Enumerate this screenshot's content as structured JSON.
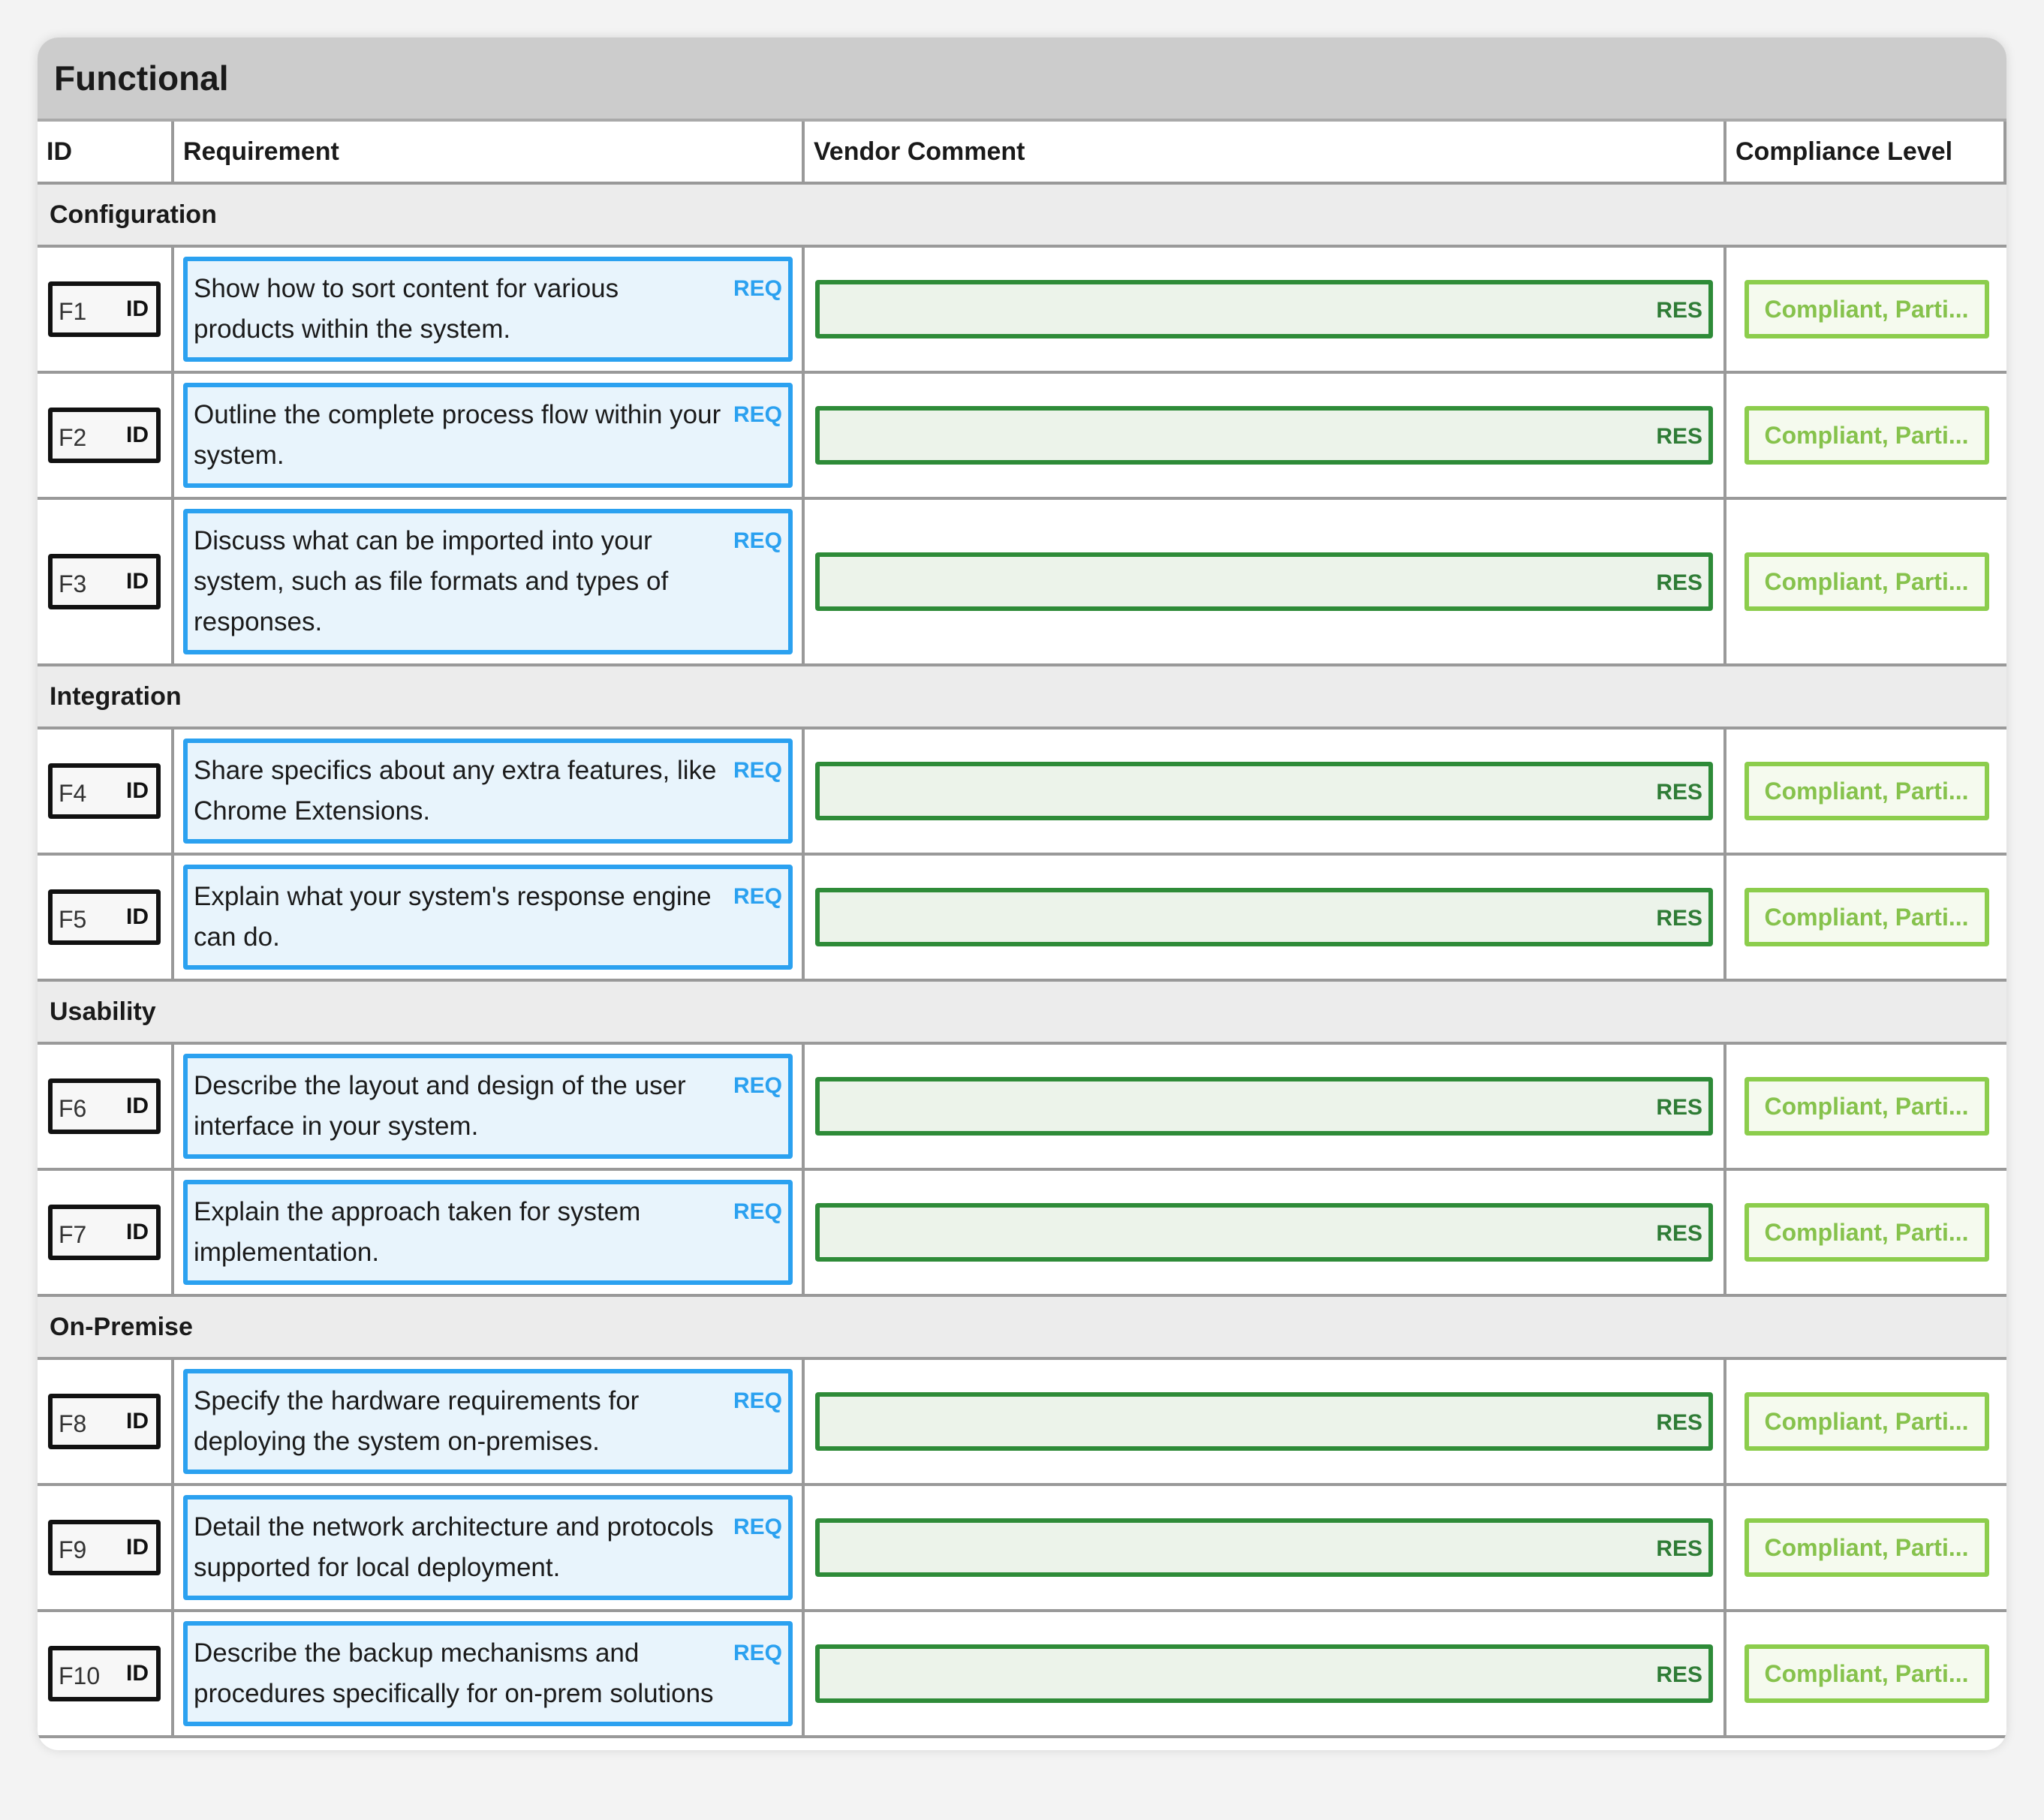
{
  "title": "Functional",
  "headers": {
    "id": "ID",
    "requirement": "Requirement",
    "vendor_comment": "Vendor Comment",
    "compliance_level": "Compliance Level"
  },
  "labels": {
    "id_tag": "ID",
    "req_tag": "REQ",
    "res_tag": "RES",
    "compliance_placeholder": "Compliant, Parti..."
  },
  "sections": [
    {
      "name": "Configuration",
      "rows": [
        {
          "id": "F1",
          "requirement": "Show how to sort content for various products within the system."
        },
        {
          "id": "F2",
          "requirement": "Outline the complete process flow within your system."
        },
        {
          "id": "F3",
          "requirement": "Discuss what can be imported into your system, such as file formats and types of responses."
        }
      ]
    },
    {
      "name": "Integration",
      "rows": [
        {
          "id": "F4",
          "requirement": "Share specifics about any extra features, like Chrome Extensions."
        },
        {
          "id": "F5",
          "requirement": "Explain what your system's response engine can do."
        }
      ]
    },
    {
      "name": "Usability",
      "rows": [
        {
          "id": "F6",
          "requirement": "Describe the layout and design of the user interface in your system."
        },
        {
          "id": "F7",
          "requirement": "Explain the approach taken for system implementation."
        }
      ]
    },
    {
      "name": "On-Premise",
      "rows": [
        {
          "id": "F8",
          "requirement": "Specify the hardware requirements for deploying the system on-premises."
        },
        {
          "id": "F9",
          "requirement": "Detail the network architecture and protocols supported for local deployment."
        },
        {
          "id": "F10",
          "requirement": "Describe the backup mechanisms and procedures specifically for on-prem solutions"
        }
      ]
    }
  ]
}
